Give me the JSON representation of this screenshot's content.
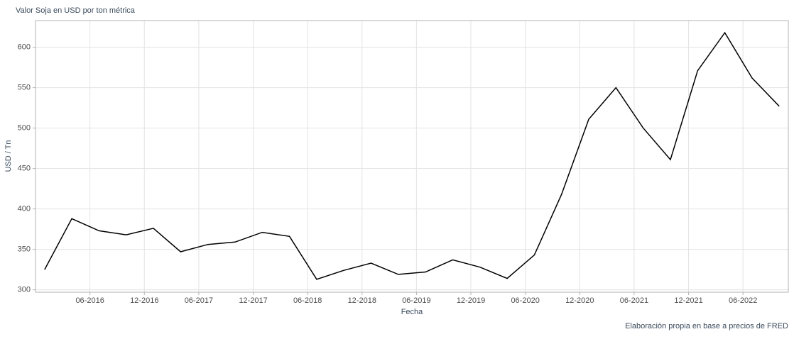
{
  "chart_data": {
    "type": "line",
    "title": "Valor Soja en USD por ton métrica",
    "x_label": "Fecha",
    "y_label": "USD / Tn",
    "caption": "Elaboración propia en base a precios de FRED",
    "x": [
      "01-2016",
      "04-2016",
      "07-2016",
      "10-2016",
      "01-2017",
      "04-2017",
      "07-2017",
      "10-2017",
      "01-2018",
      "04-2018",
      "07-2018",
      "10-2018",
      "01-2019",
      "04-2019",
      "07-2019",
      "10-2019",
      "01-2020",
      "04-2020",
      "07-2020",
      "10-2020",
      "01-2021",
      "04-2021",
      "07-2021",
      "10-2021",
      "01-2022",
      "04-2022",
      "07-2022",
      "10-2022"
    ],
    "series": [
      {
        "name": "Soja",
        "color": "#000000",
        "values": [
          325,
          388,
          373,
          368,
          376,
          347,
          356,
          359,
          371,
          366,
          313,
          324,
          333,
          319,
          322,
          337,
          328,
          314,
          343,
          418,
          511,
          550,
          500,
          461,
          571,
          618,
          562,
          527
        ]
      }
    ],
    "xlim": [
      "12-2015",
      "11-2022"
    ],
    "xticks": [
      "06-2016",
      "12-2016",
      "06-2017",
      "12-2017",
      "06-2018",
      "12-2018",
      "06-2019",
      "12-2019",
      "06-2020",
      "12-2020",
      "06-2021",
      "12-2021",
      "06-2022"
    ],
    "ylim": [
      297,
      633
    ],
    "yticks": [
      300,
      350,
      400,
      450,
      500,
      550,
      600
    ],
    "grid": true
  }
}
